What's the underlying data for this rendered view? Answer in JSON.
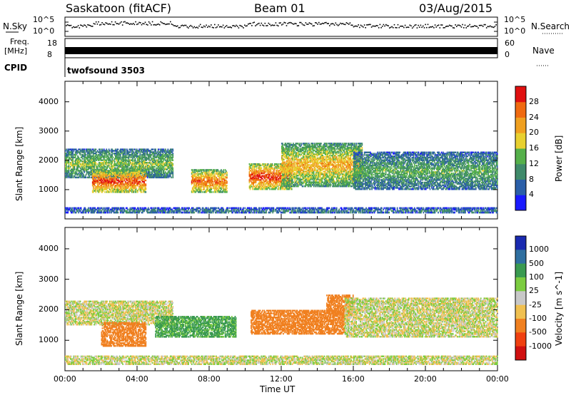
{
  "header": {
    "station": "Saskatoon (fitACF)",
    "beam": "Beam 01",
    "date": "03/Aug/2015"
  },
  "noise_panel": {
    "left_label": "N.Sky",
    "right_label": "N.Search",
    "scale_top": "10^5",
    "scale_bottom": "10^0"
  },
  "freq_panel": {
    "left_label_1": "Freq.",
    "left_label_2": "[MHz]",
    "left_ticks": [
      "18",
      "8"
    ],
    "right_ticks": [
      "60",
      "0"
    ],
    "right_label": "Nave",
    "cpid_label": "CPID",
    "cpid_text": "twofsound 3503"
  },
  "x_axis": {
    "label": "Time UT",
    "ticks": [
      "00:00",
      "04:00",
      "08:00",
      "12:00",
      "16:00",
      "20:00",
      "00:00"
    ]
  },
  "power_colorbar": {
    "label": "Power [dB]",
    "ticks": [
      "4",
      "8",
      "12",
      "16",
      "20",
      "24",
      "28"
    ],
    "colors": [
      "#1a1aff",
      "#2b5fa8",
      "#3f8a6a",
      "#55b04a",
      "#e8d030",
      "#f0a020",
      "#f06a10",
      "#e01010"
    ]
  },
  "velocity_colorbar": {
    "label": "Velocity [m s^-1]",
    "ticks": [
      "1000",
      "500",
      "100",
      "25",
      "-25",
      "-100",
      "-500",
      "-1000"
    ],
    "colors": [
      "#1a2ab0",
      "#2f6fa0",
      "#3a9a50",
      "#7ccc40",
      "#c8c8c8",
      "#f0c050",
      "#f08020",
      "#f04010",
      "#d01010"
    ]
  },
  "chart_data": [
    {
      "type": "heatmap",
      "title": "",
      "xlabel": "Time UT",
      "ylabel": "Slant Range [km]",
      "xlim": [
        "00:00",
        "24:00"
      ],
      "ylim": [
        0,
        4700
      ],
      "y_ticks": [
        1000,
        2000,
        3000,
        4000
      ],
      "colorbar_label": "Power [dB]",
      "colorbar_range": [
        0,
        32
      ],
      "echo_regions": [
        {
          "t_start": 0.0,
          "t_end": 6.0,
          "range_low": 1400,
          "range_high": 2400,
          "power": 14
        },
        {
          "t_start": 1.5,
          "t_end": 4.5,
          "range_low": 900,
          "range_high": 1700,
          "power": 26
        },
        {
          "t_start": 7.0,
          "t_end": 9.0,
          "range_low": 900,
          "range_high": 1700,
          "power": 24
        },
        {
          "t_start": 10.2,
          "t_end": 12.6,
          "range_low": 1000,
          "range_high": 1900,
          "power": 27
        },
        {
          "t_start": 12.0,
          "t_end": 16.5,
          "range_low": 1100,
          "range_high": 2600,
          "power": 20
        },
        {
          "t_start": 16.0,
          "t_end": 24.0,
          "range_low": 1000,
          "range_high": 2300,
          "power": 12
        },
        {
          "t_start": 0.0,
          "t_end": 24.0,
          "range_low": 200,
          "range_high": 400,
          "power": 8
        }
      ]
    },
    {
      "type": "heatmap",
      "title": "",
      "xlabel": "Time UT",
      "ylabel": "Slant Range [km]",
      "xlim": [
        "00:00",
        "24:00"
      ],
      "ylim": [
        0,
        4700
      ],
      "y_ticks": [
        1000,
        2000,
        3000,
        4000
      ],
      "colorbar_label": "Velocity [m s^-1]",
      "colorbar_range": [
        -1000,
        1000
      ],
      "echo_regions": [
        {
          "t_start": 0.0,
          "t_end": 6.0,
          "range_low": 1500,
          "range_high": 2300,
          "velocity": 0
        },
        {
          "t_start": 2.0,
          "t_end": 4.5,
          "range_low": 800,
          "range_high": 1600,
          "velocity": -300
        },
        {
          "t_start": 5.0,
          "t_end": 9.5,
          "range_low": 1100,
          "range_high": 1800,
          "velocity": 150
        },
        {
          "t_start": 10.3,
          "t_end": 15.5,
          "range_low": 1200,
          "range_high": 2000,
          "velocity": -200
        },
        {
          "t_start": 14.5,
          "t_end": 16.0,
          "range_low": 1800,
          "range_high": 2500,
          "velocity": -400
        },
        {
          "t_start": 15.5,
          "t_end": 24.0,
          "range_low": 1100,
          "range_high": 2400,
          "velocity": 0
        },
        {
          "t_start": 0.0,
          "t_end": 24.0,
          "range_low": 200,
          "range_high": 500,
          "velocity": 0
        }
      ]
    }
  ]
}
